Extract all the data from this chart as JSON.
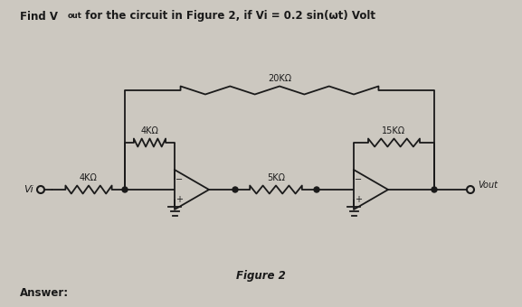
{
  "title_parts": [
    "Find V",
    "out",
    " for the circuit in Figure 2, if Vi = 0.2 sin(ωt) Volt"
  ],
  "figure_label": "Figure 2",
  "answer_label": "Answer:",
  "bg_color": "#ccc8c0",
  "line_color": "#1a1a1a",
  "R1_label": "4KΩ",
  "R2_label": "4KΩ",
  "R3_label": "20KΩ",
  "R4_label": "5KΩ",
  "R5_label": "15KΩ",
  "Vi_label": "Vi",
  "Vout_label": "Vout"
}
